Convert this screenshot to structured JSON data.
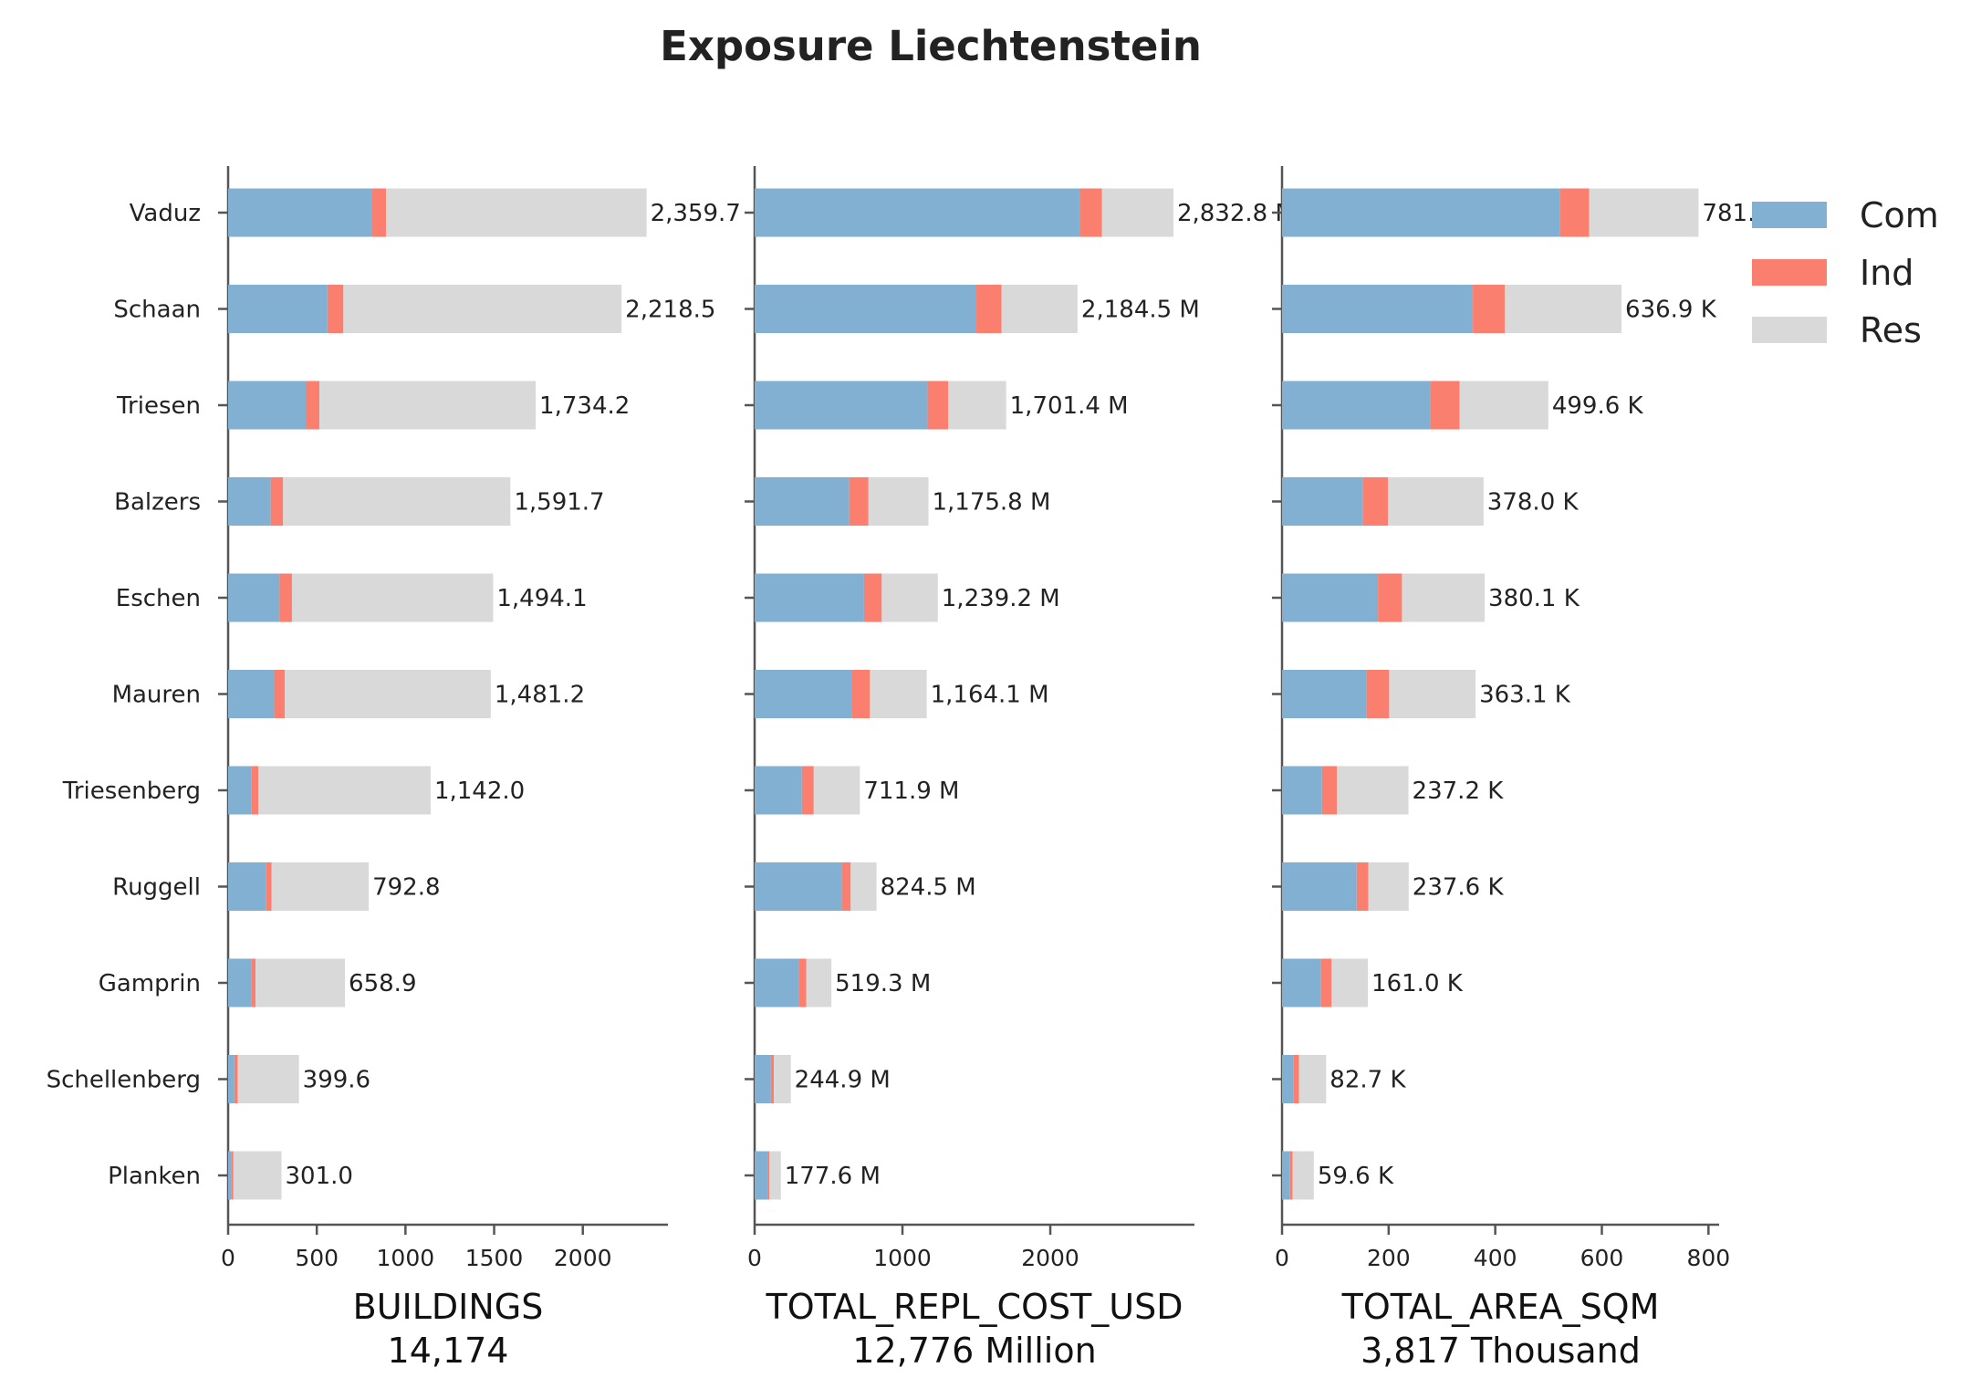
{
  "chart_data": {
    "type": "bar",
    "title": "Exposure Liechtenstein",
    "categories": [
      "Vaduz",
      "Schaan",
      "Triesen",
      "Balzers",
      "Eschen",
      "Mauren",
      "Triesenberg",
      "Ruggell",
      "Gamprin",
      "Schellenberg",
      "Planken"
    ],
    "legend": {
      "placement": "top-right",
      "entries": [
        "Com",
        "Ind",
        "Res"
      ]
    },
    "colors": {
      "Com": "#82b0d2",
      "Ind": "#fa7f6f",
      "Res": "#d9d9d9"
    },
    "grid": false,
    "panels": [
      {
        "xlabel": "BUILDINGS",
        "total_label": "14,174",
        "xlim": [
          0,
          2480
        ],
        "xticks": [
          0,
          500,
          1000,
          1500,
          2000
        ],
        "series": [
          {
            "name": "Com",
            "values": [
              810,
              560,
              440,
              240,
              290,
              260,
              130,
              215,
              130,
              35,
              20
            ]
          },
          {
            "name": "Ind",
            "values": [
              80,
              90,
              75,
              70,
              70,
              60,
              40,
              30,
              25,
              20,
              10
            ]
          },
          {
            "name": "Res",
            "values": [
              1469.7,
              1568.5,
              1219.2,
              1281.7,
              1134.1,
              1161.2,
              972.0,
              547.8,
              503.9,
              344.6,
              271.0
            ]
          }
        ],
        "total_labels": [
          "2,359.7",
          "2,218.5",
          "1,734.2",
          "1,591.7",
          "1,494.1",
          "1,481.2",
          "1,142.0",
          "792.8",
          "658.9",
          "399.6",
          "301.0"
        ]
      },
      {
        "xlabel": "TOTAL_REPL_COST_USD",
        "total_label": "12,776 Million",
        "xlim": [
          0,
          2975
        ],
        "xticks": [
          0,
          1000,
          2000
        ],
        "series": [
          {
            "name": "Com",
            "values": [
              2200,
              1500,
              1170,
              640,
              740,
              660,
              320,
              590,
              300,
              110,
              90
            ]
          },
          {
            "name": "Ind",
            "values": [
              150,
              170,
              140,
              130,
              120,
              120,
              80,
              60,
              50,
              20,
              10
            ]
          },
          {
            "name": "Res",
            "values": [
              482.8,
              514.5,
              391.4,
              405.8,
              379.2,
              384.1,
              311.9,
              174.5,
              169.3,
              114.9,
              77.6
            ]
          }
        ],
        "total_labels": [
          "2,832.8 M",
          "2,184.5 M",
          "1,701.4 M",
          "1,175.8 M",
          "1,239.2 M",
          "1,164.1 M",
          "711.9 M",
          "824.5 M",
          "519.3 M",
          "244.9 M",
          "177.6 M"
        ]
      },
      {
        "xlabel": "TOTAL_AREA_SQM",
        "total_label": "3,817 Thousand",
        "xlim": [
          0,
          820
        ],
        "xticks": [
          0,
          200,
          400,
          600,
          800
        ],
        "series": [
          {
            "name": "Com",
            "values": [
              521,
              358,
              278,
              151,
              180,
              158,
              75,
              140,
              73,
              22,
              15
            ]
          },
          {
            "name": "Ind",
            "values": [
              55,
              60,
              55,
              48,
              45,
              43,
              28,
              22,
              20,
              10,
              5
            ]
          },
          {
            "name": "Res",
            "values": [
              205.4,
              218.9,
              166.6,
              179.0,
              155.1,
              162.1,
              134.2,
              75.6,
              68.0,
              50.7,
              39.6
            ]
          }
        ],
        "total_labels": [
          "781.4 K",
          "636.9 K",
          "499.6 K",
          "378.0 K",
          "380.1 K",
          "363.1 K",
          "237.2 K",
          "237.6 K",
          "161.0 K",
          "82.7 K",
          "59.6 K"
        ]
      }
    ]
  }
}
